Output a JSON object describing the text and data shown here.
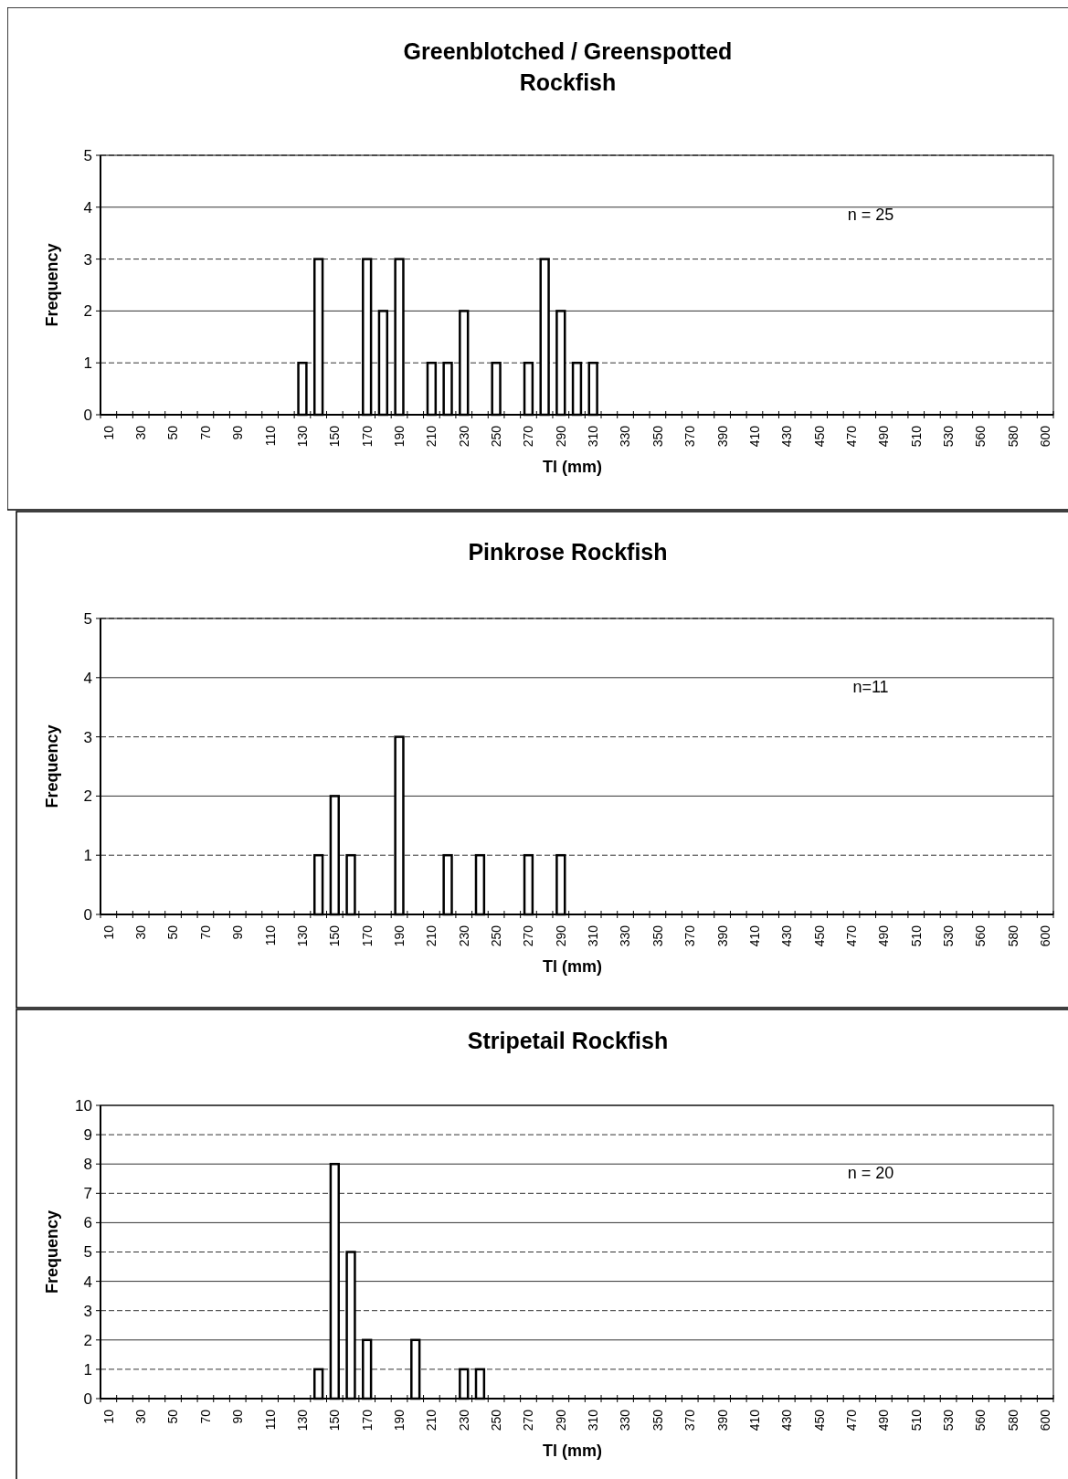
{
  "chart_data": [
    {
      "type": "bar",
      "title": "Greenblotched / Greenspotted\nRockfish",
      "xlabel": "Tl (mm)",
      "ylabel": "Frequency",
      "annotations": [
        "n = 25"
      ],
      "color": "#ffffff",
      "ylim": [
        0,
        5
      ],
      "yticks": [
        0,
        1,
        2,
        3,
        4,
        5
      ],
      "grid": "y",
      "categories": [
        "10",
        null,
        "30",
        null,
        "50",
        null,
        "70",
        null,
        "90",
        null,
        "110",
        null,
        "130",
        null,
        "150",
        null,
        "170",
        null,
        "190",
        null,
        "210",
        null,
        "230",
        null,
        "250",
        null,
        "270",
        null,
        "290",
        null,
        "310",
        null,
        "330",
        null,
        "350",
        null,
        "370",
        null,
        "390",
        null,
        "410",
        null,
        "430",
        null,
        "450",
        null,
        "470",
        null,
        "490",
        null,
        "510",
        null,
        "530",
        null,
        "560",
        null,
        "580",
        null,
        "600"
      ],
      "values": [
        0,
        0,
        0,
        0,
        0,
        0,
        0,
        0,
        0,
        0,
        0,
        0,
        1,
        3,
        0,
        0,
        3,
        2,
        3,
        0,
        1,
        1,
        2,
        0,
        1,
        0,
        1,
        3,
        2,
        1,
        1,
        0,
        0,
        0,
        0,
        0,
        0,
        0,
        0,
        0,
        0,
        0,
        0,
        0,
        0,
        0,
        0,
        0,
        0,
        0,
        0,
        0,
        0,
        0,
        0,
        0,
        0,
        0,
        0
      ]
    },
    {
      "type": "bar",
      "title": "Pinkrose Rockfish",
      "xlabel": "Tl (mm)",
      "ylabel": "Frequency",
      "annotations": [
        "n=11"
      ],
      "color": "#ffffff",
      "ylim": [
        0,
        5
      ],
      "yticks": [
        0,
        1,
        2,
        3,
        4,
        5
      ],
      "grid": "y",
      "categories": [
        "10",
        null,
        "30",
        null,
        "50",
        null,
        "70",
        null,
        "90",
        null,
        "110",
        null,
        "130",
        null,
        "150",
        null,
        "170",
        null,
        "190",
        null,
        "210",
        null,
        "230",
        null,
        "250",
        null,
        "270",
        null,
        "290",
        null,
        "310",
        null,
        "330",
        null,
        "350",
        null,
        "370",
        null,
        "390",
        null,
        "410",
        null,
        "430",
        null,
        "450",
        null,
        "470",
        null,
        "490",
        null,
        "510",
        null,
        "530",
        null,
        "560",
        null,
        "580",
        null,
        "600"
      ],
      "values": [
        0,
        0,
        0,
        0,
        0,
        0,
        0,
        0,
        0,
        0,
        0,
        0,
        0,
        1,
        2,
        1,
        0,
        0,
        3,
        0,
        0,
        1,
        0,
        1,
        0,
        0,
        1,
        0,
        1,
        0,
        0,
        0,
        0,
        0,
        0,
        0,
        0,
        0,
        0,
        0,
        0,
        0,
        0,
        0,
        0,
        0,
        0,
        0,
        0,
        0,
        0,
        0,
        0,
        0,
        0,
        0,
        0,
        0,
        0
      ]
    },
    {
      "type": "bar",
      "title": "Stripetail Rockfish",
      "xlabel": "Tl (mm)",
      "ylabel": "Frequency",
      "annotations": [
        "n = 20"
      ],
      "color": "#ffffff",
      "ylim": [
        0,
        10
      ],
      "yticks": [
        0,
        1,
        2,
        3,
        4,
        5,
        6,
        7,
        8,
        9,
        10
      ],
      "grid": "y",
      "categories": [
        "10",
        null,
        "30",
        null,
        "50",
        null,
        "70",
        null,
        "90",
        null,
        "110",
        null,
        "130",
        null,
        "150",
        null,
        "170",
        null,
        "190",
        null,
        "210",
        null,
        "230",
        null,
        "250",
        null,
        "270",
        null,
        "290",
        null,
        "310",
        null,
        "330",
        null,
        "350",
        null,
        "370",
        null,
        "390",
        null,
        "410",
        null,
        "430",
        null,
        "450",
        null,
        "470",
        null,
        "490",
        null,
        "510",
        null,
        "530",
        null,
        "560",
        null,
        "580",
        null,
        "600"
      ],
      "values": [
        0,
        0,
        0,
        0,
        0,
        0,
        0,
        0,
        0,
        0,
        0,
        0,
        0,
        1,
        8,
        5,
        2,
        0,
        0,
        2,
        0,
        0,
        1,
        1,
        0,
        0,
        0,
        0,
        0,
        0,
        0,
        0,
        0,
        0,
        0,
        0,
        0,
        0,
        0,
        0,
        0,
        0,
        0,
        0,
        0,
        0,
        0,
        0,
        0,
        0,
        0,
        0,
        0,
        0,
        0,
        0,
        0,
        0,
        0
      ]
    }
  ]
}
